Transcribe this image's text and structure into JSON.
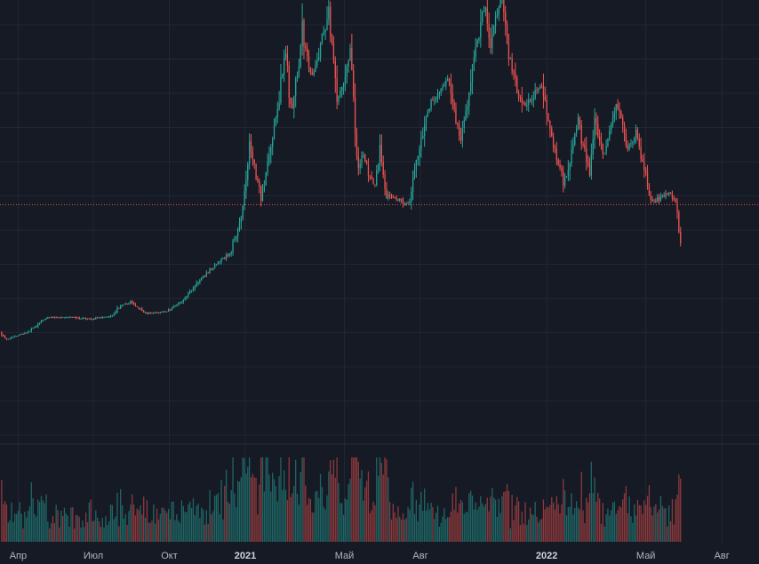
{
  "colors": {
    "background": "#161a25",
    "grid": "#232734",
    "up": "#26a69a",
    "down": "#ef5350",
    "price_line": "#ef5350",
    "tick_text": "#b2b5be",
    "separator": "#2a2e39"
  },
  "chart_data": {
    "type": "candlestick",
    "title": "",
    "xlabel": "",
    "ylabel": "",
    "x_range": [
      "2020-03-10",
      "2022-09-15"
    ],
    "y_range": [
      0,
      70000
    ],
    "last_price": 29700,
    "grid": true,
    "x_ticks": [
      {
        "label": "Апр",
        "date": "2020-04-01",
        "bold": false
      },
      {
        "label": "Июл",
        "date": "2020-07-01",
        "bold": false
      },
      {
        "label": "Окт",
        "date": "2020-10-01",
        "bold": false
      },
      {
        "label": "2021",
        "date": "2021-01-01",
        "bold": true
      },
      {
        "label": "Май",
        "date": "2021-05-01",
        "bold": false
      },
      {
        "label": "Авг",
        "date": "2021-08-01",
        "bold": false
      },
      {
        "label": "2022",
        "date": "2022-01-01",
        "bold": true
      },
      {
        "label": "Май",
        "date": "2022-05-01",
        "bold": false
      },
      {
        "label": "Авг",
        "date": "2022-08-01",
        "bold": false
      }
    ],
    "price_path": [
      [
        "2020-03-12",
        6800
      ],
      [
        "2020-03-20",
        5600
      ],
      [
        "2020-04-15",
        6900
      ],
      [
        "2020-05-08",
        9500
      ],
      [
        "2020-06-01",
        9500
      ],
      [
        "2020-07-01",
        9200
      ],
      [
        "2020-07-25",
        9800
      ],
      [
        "2020-08-05",
        11500
      ],
      [
        "2020-08-17",
        12200
      ],
      [
        "2020-09-05",
        10200
      ],
      [
        "2020-10-01",
        10600
      ],
      [
        "2020-10-21",
        12800
      ],
      [
        "2020-11-05",
        15500
      ],
      [
        "2020-11-25",
        18500
      ],
      [
        "2020-12-16",
        21000
      ],
      [
        "2020-12-31",
        29000
      ],
      [
        "2021-01-08",
        41000
      ],
      [
        "2021-01-22",
        31000
      ],
      [
        "2021-02-08",
        44000
      ],
      [
        "2021-02-21",
        57000
      ],
      [
        "2021-02-28",
        45000
      ],
      [
        "2021-03-13",
        61000
      ],
      [
        "2021-03-25",
        52000
      ],
      [
        "2021-04-14",
        64500
      ],
      [
        "2021-04-25",
        48000
      ],
      [
        "2021-05-10",
        57000
      ],
      [
        "2021-05-19",
        36000
      ],
      [
        "2021-05-25",
        39000
      ],
      [
        "2021-06-08",
        32000
      ],
      [
        "2021-06-15",
        40000
      ],
      [
        "2021-06-22",
        31500
      ],
      [
        "2021-07-20",
        29800
      ],
      [
        "2021-08-01",
        40000
      ],
      [
        "2021-08-14",
        47500
      ],
      [
        "2021-09-06",
        52000
      ],
      [
        "2021-09-21",
        40700
      ],
      [
        "2021-10-06",
        55000
      ],
      [
        "2021-10-20",
        66000
      ],
      [
        "2021-10-27",
        58000
      ],
      [
        "2021-11-10",
        68700
      ],
      [
        "2021-11-18",
        56500
      ],
      [
        "2021-12-04",
        47000
      ],
      [
        "2021-12-27",
        51000
      ],
      [
        "2022-01-10",
        41000
      ],
      [
        "2022-01-24",
        33500
      ],
      [
        "2022-02-10",
        44500
      ],
      [
        "2022-02-24",
        35000
      ],
      [
        "2022-03-02",
        44000
      ],
      [
        "2022-03-13",
        38000
      ],
      [
        "2022-03-29",
        47800
      ],
      [
        "2022-04-11",
        39500
      ],
      [
        "2022-04-21",
        42500
      ],
      [
        "2022-05-10",
        30000
      ],
      [
        "2022-05-31",
        31800
      ],
      [
        "2022-06-09",
        30100
      ],
      [
        "2022-06-13",
        22500
      ]
    ]
  }
}
